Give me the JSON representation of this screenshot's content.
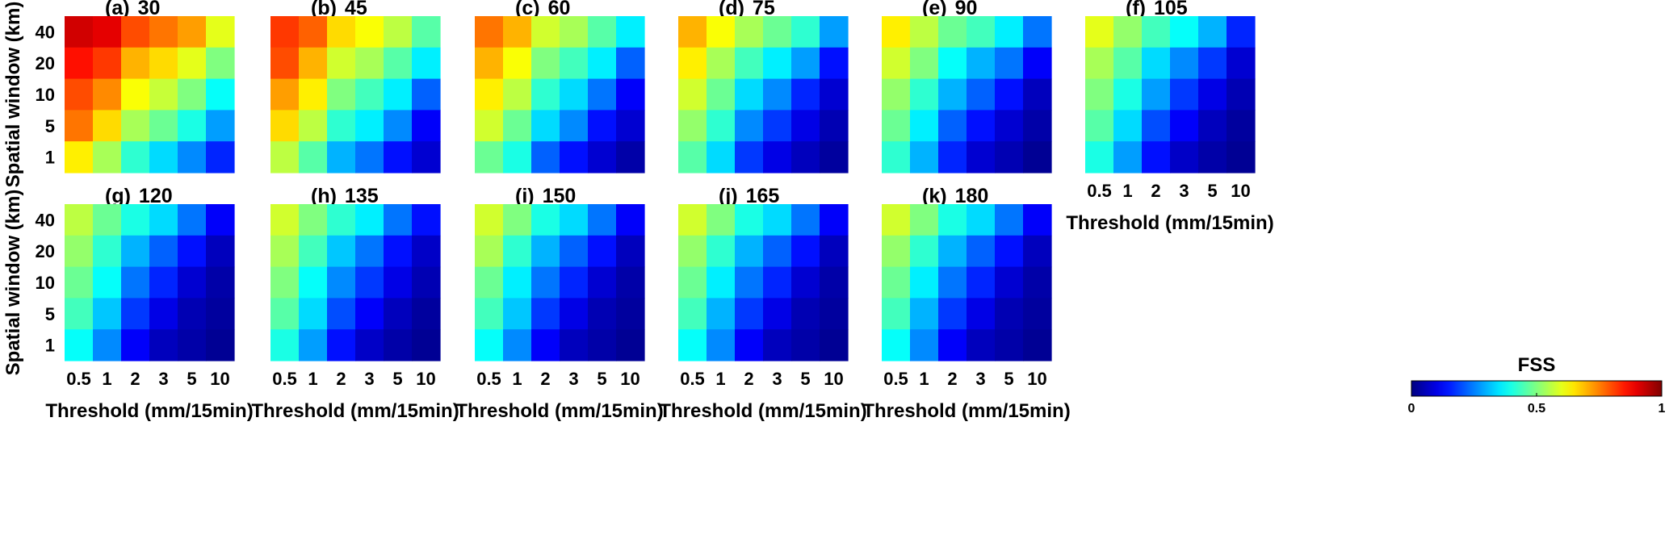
{
  "chart_data": {
    "type": "heatmap",
    "colorbar": {
      "title": "FSS",
      "range": [
        0,
        1
      ],
      "ticks": [
        "0",
        "0.5",
        "1"
      ],
      "colormap": "jet"
    },
    "x_categories": [
      "0.5",
      "1",
      "2",
      "3",
      "5",
      "10"
    ],
    "y_categories": [
      "40",
      "20",
      "10",
      "5",
      "1"
    ],
    "xlabel": "Threshold (mm/15min)",
    "ylabel": "Spatial window (km)",
    "panels": [
      {
        "label": "(a)",
        "value": "30",
        "grid": [
          [
            0.92,
            0.9,
            0.8,
            0.76,
            0.72,
            0.6
          ],
          [
            0.86,
            0.82,
            0.7,
            0.66,
            0.6,
            0.5
          ],
          [
            0.8,
            0.74,
            0.62,
            0.57,
            0.5,
            0.38
          ],
          [
            0.76,
            0.66,
            0.54,
            0.48,
            0.4,
            0.28
          ],
          [
            0.64,
            0.54,
            0.42,
            0.34,
            0.26,
            0.16
          ]
        ]
      },
      {
        "label": "(b)",
        "value": "45",
        "grid": [
          [
            0.82,
            0.78,
            0.66,
            0.62,
            0.56,
            0.46
          ],
          [
            0.8,
            0.7,
            0.58,
            0.54,
            0.46,
            0.36
          ],
          [
            0.72,
            0.64,
            0.5,
            0.44,
            0.36,
            0.22
          ],
          [
            0.66,
            0.56,
            0.42,
            0.36,
            0.26,
            0.12
          ],
          [
            0.56,
            0.46,
            0.3,
            0.24,
            0.14,
            0.08
          ]
        ]
      },
      {
        "label": "(c)",
        "value": "60",
        "grid": [
          [
            0.76,
            0.7,
            0.58,
            0.54,
            0.46,
            0.36
          ],
          [
            0.7,
            0.62,
            0.5,
            0.44,
            0.36,
            0.22
          ],
          [
            0.64,
            0.56,
            0.42,
            0.34,
            0.24,
            0.12
          ],
          [
            0.58,
            0.48,
            0.34,
            0.26,
            0.14,
            0.08
          ],
          [
            0.48,
            0.4,
            0.22,
            0.14,
            0.08,
            0.04
          ]
        ]
      },
      {
        "label": "(d)",
        "value": "75",
        "grid": [
          [
            0.7,
            0.62,
            0.54,
            0.48,
            0.42,
            0.28
          ],
          [
            0.64,
            0.54,
            0.44,
            0.36,
            0.28,
            0.14
          ],
          [
            0.58,
            0.48,
            0.34,
            0.26,
            0.16,
            0.08
          ],
          [
            0.52,
            0.42,
            0.26,
            0.18,
            0.1,
            0.05
          ],
          [
            0.46,
            0.34,
            0.18,
            0.1,
            0.06,
            0.03
          ]
        ]
      },
      {
        "label": "(e)",
        "value": "90",
        "grid": [
          [
            0.64,
            0.56,
            0.48,
            0.44,
            0.36,
            0.24
          ],
          [
            0.58,
            0.5,
            0.38,
            0.3,
            0.24,
            0.12
          ],
          [
            0.52,
            0.42,
            0.3,
            0.22,
            0.14,
            0.06
          ],
          [
            0.48,
            0.36,
            0.22,
            0.14,
            0.08,
            0.04
          ],
          [
            0.42,
            0.3,
            0.16,
            0.08,
            0.05,
            0.02
          ]
        ]
      },
      {
        "label": "(f)",
        "value": "105",
        "grid": [
          [
            0.6,
            0.52,
            0.44,
            0.38,
            0.3,
            0.16
          ],
          [
            0.54,
            0.46,
            0.34,
            0.26,
            0.18,
            0.08
          ],
          [
            0.5,
            0.4,
            0.28,
            0.18,
            0.1,
            0.05
          ],
          [
            0.46,
            0.34,
            0.2,
            0.12,
            0.06,
            0.03
          ],
          [
            0.4,
            0.28,
            0.14,
            0.07,
            0.04,
            0.02
          ]
        ]
      },
      {
        "label": "(g)",
        "value": "120",
        "grid": [
          [
            0.56,
            0.48,
            0.4,
            0.34,
            0.24,
            0.12
          ],
          [
            0.52,
            0.42,
            0.3,
            0.22,
            0.14,
            0.06
          ],
          [
            0.48,
            0.38,
            0.24,
            0.16,
            0.08,
            0.04
          ],
          [
            0.44,
            0.32,
            0.18,
            0.1,
            0.05,
            0.03
          ],
          [
            0.38,
            0.26,
            0.12,
            0.06,
            0.04,
            0.02
          ]
        ]
      },
      {
        "label": "(h)",
        "value": "135",
        "grid": [
          [
            0.58,
            0.5,
            0.42,
            0.36,
            0.24,
            0.14
          ],
          [
            0.54,
            0.44,
            0.32,
            0.24,
            0.14,
            0.07
          ],
          [
            0.5,
            0.38,
            0.26,
            0.18,
            0.1,
            0.05
          ],
          [
            0.46,
            0.34,
            0.2,
            0.12,
            0.06,
            0.03
          ],
          [
            0.4,
            0.28,
            0.14,
            0.07,
            0.04,
            0.02
          ]
        ]
      },
      {
        "label": "(i)",
        "value": "150",
        "grid": [
          [
            0.58,
            0.5,
            0.4,
            0.34,
            0.24,
            0.12
          ],
          [
            0.54,
            0.42,
            0.3,
            0.22,
            0.14,
            0.06
          ],
          [
            0.48,
            0.36,
            0.24,
            0.16,
            0.08,
            0.04
          ],
          [
            0.44,
            0.32,
            0.18,
            0.1,
            0.05,
            0.03
          ],
          [
            0.38,
            0.26,
            0.12,
            0.06,
            0.04,
            0.02
          ]
        ]
      },
      {
        "label": "(j)",
        "value": "165",
        "grid": [
          [
            0.58,
            0.5,
            0.4,
            0.34,
            0.24,
            0.12
          ],
          [
            0.52,
            0.42,
            0.3,
            0.22,
            0.14,
            0.06
          ],
          [
            0.48,
            0.36,
            0.24,
            0.16,
            0.08,
            0.04
          ],
          [
            0.44,
            0.3,
            0.18,
            0.1,
            0.05,
            0.03
          ],
          [
            0.38,
            0.26,
            0.12,
            0.06,
            0.04,
            0.02
          ]
        ]
      },
      {
        "label": "(k)",
        "value": "180",
        "grid": [
          [
            0.58,
            0.5,
            0.4,
            0.34,
            0.24,
            0.12
          ],
          [
            0.52,
            0.42,
            0.3,
            0.22,
            0.14,
            0.06
          ],
          [
            0.48,
            0.36,
            0.24,
            0.16,
            0.08,
            0.04
          ],
          [
            0.44,
            0.3,
            0.18,
            0.1,
            0.05,
            0.03
          ],
          [
            0.38,
            0.26,
            0.12,
            0.06,
            0.04,
            0.02
          ]
        ]
      }
    ]
  }
}
